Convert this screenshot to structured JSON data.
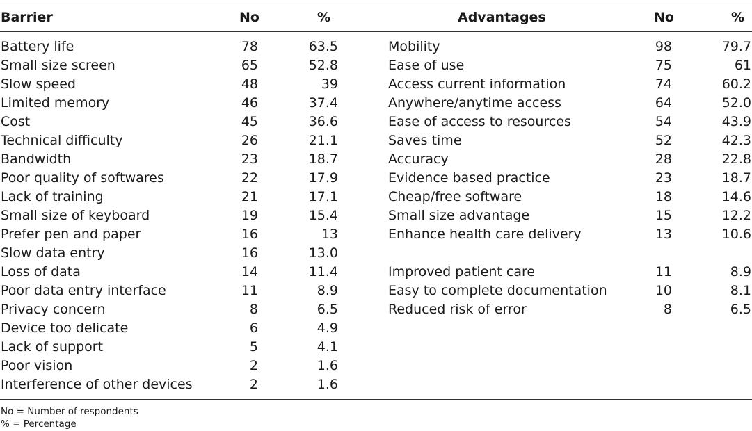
{
  "headers": {
    "barrier": "Barrier",
    "barrier_no": "No",
    "barrier_pct": "%",
    "advantages": "Advantages",
    "adv_no": "No",
    "adv_pct": "%"
  },
  "barriers": [
    {
      "label": "Battery life",
      "no": "78",
      "pct": "63.5"
    },
    {
      "label": "Small size screen",
      "no": "65",
      "pct": "52.8"
    },
    {
      "label": "Slow speed",
      "no": "48",
      "pct": "39"
    },
    {
      "label": "Limited memory",
      "no": "46",
      "pct": "37.4"
    },
    {
      "label": "Cost",
      "no": "45",
      "pct": "36.6"
    },
    {
      "label": "Technical difficulty",
      "no": "26",
      "pct": "21.1"
    },
    {
      "label": "Bandwidth",
      "no": "23",
      "pct": "18.7"
    },
    {
      "label": "Poor quality of softwares",
      "no": "22",
      "pct": "17.9"
    },
    {
      "label": "Lack of training",
      "no": "21",
      "pct": "17.1"
    },
    {
      "label": "Small size of keyboard",
      "no": "19",
      "pct": "15.4"
    },
    {
      "label": "Prefer pen and paper",
      "no": "16",
      "pct": "13"
    },
    {
      "label": "Slow data entry",
      "no": "16",
      "pct": "13.0"
    },
    {
      "label": "Loss of data",
      "no": "14",
      "pct": "11.4"
    },
    {
      "label": "Poor data entry interface",
      "no": "11",
      "pct": "8.9"
    },
    {
      "label": "Privacy concern",
      "no": "8",
      "pct": "6.5"
    },
    {
      "label": "Device too delicate",
      "no": "6",
      "pct": "4.9"
    },
    {
      "label": "Lack of support",
      "no": "5",
      "pct": "4.1"
    },
    {
      "label": "Poor vision",
      "no": "2",
      "pct": "1.6"
    },
    {
      "label": "Interference of other devices",
      "no": "2",
      "pct": "1.6"
    }
  ],
  "advantages": [
    {
      "label": "Mobility",
      "no": "98",
      "pct": "79.7"
    },
    {
      "label": "Ease of use",
      "no": "75",
      "pct": "61"
    },
    {
      "label": "Access current information",
      "no": "74",
      "pct": "60.2"
    },
    {
      "label": "Anywhere/anytime access",
      "no": "64",
      "pct": "52.0"
    },
    {
      "label": "Ease of access to resources",
      "no": "54",
      "pct": "43.9"
    },
    {
      "label": "Saves time",
      "no": "52",
      "pct": "42.3"
    },
    {
      "label": "Accuracy",
      "no": "28",
      "pct": "22.8"
    },
    {
      "label": "Evidence based practice",
      "no": "23",
      "pct": "18.7"
    },
    {
      "label": "Cheap/free software",
      "no": "18",
      "pct": "14.6"
    },
    {
      "label": "Small size advantage",
      "no": "15",
      "pct": "12.2"
    },
    {
      "label": "Enhance health care delivery",
      "no": "13",
      "pct": "10.6"
    },
    {
      "label": "",
      "no": "",
      "pct": ""
    },
    {
      "label": "Improved patient care",
      "no": "11",
      "pct": "8.9"
    },
    {
      "label": "Easy to complete documentation",
      "no": "10",
      "pct": "8.1"
    },
    {
      "label": "Reduced risk of error",
      "no": "8",
      "pct": "6.5"
    }
  ],
  "footnotes": {
    "no": "No  =  Number of respondents",
    "pct": "%  =  Percentage"
  }
}
